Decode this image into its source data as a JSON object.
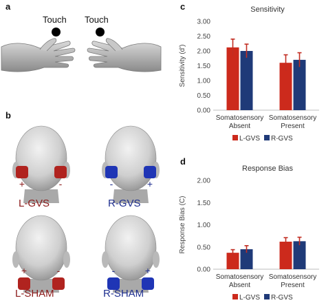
{
  "panels": {
    "a": {
      "letter": "a",
      "touch_labels": [
        "Touch",
        "Touch"
      ]
    },
    "b": {
      "letter": "b",
      "conditions": [
        {
          "label": "L-GVS",
          "color": "#8b1a1a",
          "pad_color": "#b0231f",
          "signs": [
            "+",
            "-"
          ],
          "pads": "ears"
        },
        {
          "label": "R-GVS",
          "color": "#1f2f8f",
          "pad_color": "#1f35b5",
          "signs": [
            "-",
            "+"
          ],
          "pads": "ears"
        },
        {
          "label": "L-SHAM",
          "color": "#8b1a1a",
          "pad_color": "#b0231f",
          "signs": [
            "+",
            "-"
          ],
          "pads": "neck"
        },
        {
          "label": "R-SHAM",
          "color": "#1f2f8f",
          "pad_color": "#1f35b5",
          "signs": [
            "-",
            "+"
          ],
          "pads": "neck"
        }
      ]
    }
  },
  "chart_data": [
    {
      "panel_letter": "c",
      "type": "bar",
      "title": "Sensitivity",
      "ylabel": "Sensitivity (d')",
      "xlabel": "",
      "ylim": [
        0,
        3
      ],
      "yticks": [
        "0.00",
        "0.50",
        "1.00",
        "1.50",
        "2.00",
        "2.50",
        "3.00"
      ],
      "grid": false,
      "legend": "bottom",
      "categories": [
        [
          "Somatosensory",
          "Absent"
        ],
        [
          "Somatosensory",
          "Present"
        ]
      ],
      "series": [
        {
          "name": "L-GVS",
          "color": "#cc2a1c",
          "values": [
            2.12,
            1.6
          ],
          "errors": [
            0.28,
            0.27
          ]
        },
        {
          "name": "R-GVS",
          "color": "#1f3a78",
          "values": [
            2.0,
            1.7
          ],
          "errors": [
            0.23,
            0.24
          ]
        }
      ]
    },
    {
      "panel_letter": "d",
      "type": "bar",
      "title": "Response Bias",
      "ylabel": "Response Bias (C)",
      "xlabel": "",
      "ylim": [
        0,
        2
      ],
      "yticks": [
        "0.00",
        "0.50",
        "1.00",
        "1.50",
        "2.00"
      ],
      "grid": false,
      "legend": "bottom",
      "categories": [
        [
          "Somatosensory",
          "Absent"
        ],
        [
          "Somatosensory",
          "Present"
        ]
      ],
      "series": [
        {
          "name": "L-GVS",
          "color": "#cc2a1c",
          "values": [
            0.37,
            0.62
          ],
          "errors": [
            0.07,
            0.09
          ]
        },
        {
          "name": "R-GVS",
          "color": "#1f3a78",
          "values": [
            0.45,
            0.63
          ],
          "errors": [
            0.08,
            0.09
          ]
        }
      ]
    }
  ]
}
